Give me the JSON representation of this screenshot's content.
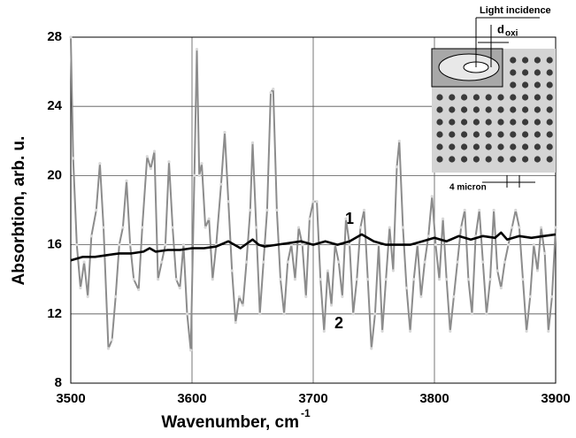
{
  "chart_data": {
    "type": "line",
    "x_label": "Wavenumber, cm",
    "x_label_sup": "-1",
    "y_label": "Absorbtion, arb. u.",
    "xlim": [
      3500,
      3900
    ],
    "xticks": [
      3500,
      3600,
      3700,
      3800,
      3900
    ],
    "ylim": [
      8,
      28
    ],
    "yticks": [
      8,
      12,
      16,
      20,
      24,
      28
    ],
    "grid": true,
    "series": [
      {
        "name": "1",
        "color": "#000000",
        "x": [
          3500,
          3510,
          3520,
          3530,
          3540,
          3550,
          3560,
          3565,
          3570,
          3580,
          3590,
          3600,
          3610,
          3620,
          3630,
          3640,
          3650,
          3655,
          3660,
          3670,
          3680,
          3690,
          3700,
          3710,
          3720,
          3730,
          3740,
          3750,
          3760,
          3770,
          3780,
          3790,
          3800,
          3810,
          3820,
          3830,
          3840,
          3850,
          3855,
          3860,
          3870,
          3880,
          3890,
          3900
        ],
        "values": [
          15.1,
          15.3,
          15.3,
          15.4,
          15.5,
          15.5,
          15.6,
          15.8,
          15.6,
          15.7,
          15.7,
          15.8,
          15.8,
          15.9,
          16.2,
          15.8,
          16.3,
          16.0,
          15.9,
          16.0,
          16.1,
          16.2,
          16.0,
          16.2,
          16.0,
          16.2,
          16.6,
          16.2,
          16.0,
          16.0,
          16.0,
          16.2,
          16.4,
          16.2,
          16.5,
          16.3,
          16.5,
          16.4,
          16.7,
          16.3,
          16.5,
          16.4,
          16.5,
          16.6
        ]
      },
      {
        "name": "2",
        "color": "#8c8c8c",
        "x": [
          3500,
          3502,
          3505,
          3508,
          3511,
          3514,
          3517,
          3521,
          3524,
          3527,
          3531,
          3534,
          3537,
          3540,
          3543,
          3546,
          3549,
          3552,
          3556,
          3559,
          3563,
          3566,
          3569,
          3572,
          3575,
          3578,
          3581,
          3584,
          3587,
          3590,
          3593,
          3596,
          3599,
          3602,
          3604,
          3606,
          3608,
          3611,
          3614,
          3617,
          3620,
          3624,
          3627,
          3630,
          3633,
          3636,
          3639,
          3642,
          3645,
          3648,
          3650,
          3653,
          3656,
          3659,
          3662,
          3665,
          3667,
          3670,
          3673,
          3676,
          3679,
          3682,
          3685,
          3688,
          3691,
          3694,
          3697,
          3700,
          3703,
          3706,
          3709,
          3712,
          3715,
          3718,
          3721,
          3724,
          3727,
          3730,
          3733,
          3736,
          3739,
          3742,
          3745,
          3748,
          3751,
          3754,
          3757,
          3760,
          3763,
          3766,
          3769,
          3771,
          3774,
          3777,
          3780,
          3783,
          3786,
          3789,
          3792,
          3795,
          3798,
          3801,
          3804,
          3807,
          3810,
          3813,
          3816,
          3819,
          3822,
          3825,
          3828,
          3831,
          3834,
          3837,
          3840,
          3843,
          3846,
          3849,
          3852,
          3855,
          3858,
          3861,
          3864,
          3867,
          3870,
          3873,
          3876,
          3879,
          3882,
          3885,
          3888,
          3891,
          3894,
          3897,
          3900
        ],
        "values": [
          28,
          21,
          16,
          13.5,
          15,
          13,
          16.5,
          18,
          20.7,
          17,
          10,
          10.5,
          13,
          16,
          17,
          19.7,
          16,
          14,
          13.4,
          17,
          21.1,
          20.4,
          21.4,
          14,
          15,
          16,
          20.8,
          17,
          14,
          13.5,
          16,
          12,
          9.9,
          20,
          27.3,
          20,
          20.7,
          17,
          17.5,
          14,
          16,
          19.5,
          22.5,
          18.5,
          14.5,
          11.5,
          13,
          12.5,
          15,
          18,
          21.9,
          17,
          12,
          15,
          18,
          24.8,
          25,
          18,
          14,
          12,
          15,
          16,
          14,
          17,
          16,
          13,
          17.5,
          18.5,
          18.5,
          14,
          11,
          14.5,
          12.5,
          16,
          15,
          13,
          17.5,
          16,
          12,
          14,
          17,
          18,
          14,
          10,
          12,
          16,
          11,
          14,
          17,
          14.5,
          20.5,
          22,
          17,
          13.5,
          11,
          14,
          16,
          13,
          15,
          16.5,
          18.8,
          16,
          14,
          17.5,
          14,
          11,
          13,
          15,
          17,
          18,
          14,
          12,
          16.5,
          18,
          15,
          12,
          14,
          18,
          14.5,
          13.5,
          15,
          16,
          17,
          18,
          17,
          14,
          11,
          13,
          16,
          14.5,
          17,
          15.5,
          11,
          13,
          17
        ]
      }
    ],
    "annotations": [
      "1",
      "2"
    ],
    "inset": {
      "light": "Light incidence",
      "d": "d",
      "d_sub": "oxi",
      "scale": "4 micron"
    }
  }
}
